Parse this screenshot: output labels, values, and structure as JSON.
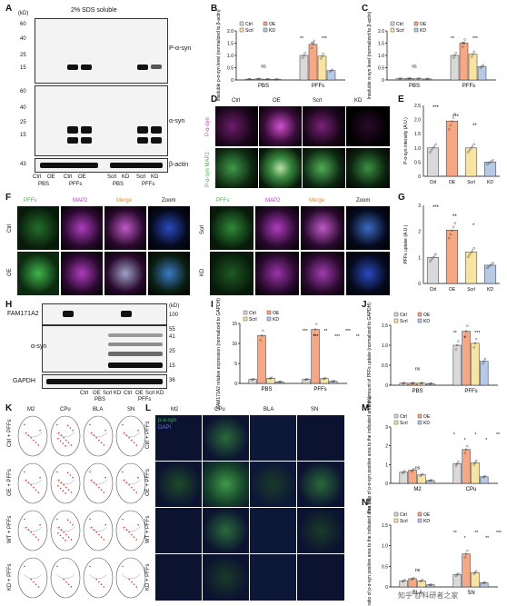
{
  "panels": [
    "A",
    "B",
    "C",
    "D",
    "E",
    "F",
    "G",
    "H",
    "I",
    "J",
    "K",
    "L",
    "M",
    "N"
  ],
  "A": {
    "title": "2% SDS soluble",
    "unit": "(kD)",
    "mw_top": [
      "60",
      "40",
      "25",
      "15"
    ],
    "mw_mid": [
      "60",
      "40",
      "25",
      "15"
    ],
    "mw_bot": [
      "43"
    ],
    "rows": [
      "P-α-syn",
      "α-syn",
      "β-actin"
    ],
    "lanes": [
      "Ctrl",
      "OE",
      "Ctrl",
      "OE",
      "Scrl",
      "KD",
      "Scrl",
      "KD"
    ],
    "groups": [
      "PBS",
      "PFFs",
      "PBS",
      "PFFs"
    ]
  },
  "B": {
    "ylabel": "Insoluble p-α-syn level (normalized to β-actin)",
    "ticks": [
      "0",
      "0.5",
      "1.0",
      "1.5",
      "2.0"
    ],
    "groups": [
      "PBS",
      "PFFs"
    ],
    "ns": "ns",
    "sig": [
      "**",
      "**",
      "***"
    ]
  },
  "C": {
    "ylabel": "Insoluble α-syn level (normalized to β-actin)",
    "ticks": [
      "0",
      "0.5",
      "1.0",
      "1.5",
      "2.0"
    ],
    "groups": [
      "PBS",
      "PFFs"
    ],
    "ns": "ns",
    "sig": [
      "**",
      "**",
      "***"
    ]
  },
  "legend": [
    "Ctrl",
    "OE",
    "Scrl",
    "KD"
  ],
  "D": {
    "rows": [
      "P-α-syn",
      "P-α-syn MAP2"
    ],
    "cols": [
      "Ctrl",
      "OE",
      "Scrl",
      "KD"
    ]
  },
  "E": {
    "ylabel": "P-α-syn intensity (A.U.)",
    "ticks": [
      "0",
      "0.5",
      "1.0",
      "1.5",
      "2.0",
      "2.5"
    ],
    "cats": [
      "Ctrl",
      "OE",
      "Scrl",
      "KD"
    ],
    "sig": [
      "***",
      "***",
      "**"
    ]
  },
  "F": {
    "cols": [
      "PFFs",
      "MAP2",
      "Merge",
      "Zoom"
    ],
    "rows_left": [
      "Ctrl",
      "OE"
    ],
    "rows_right": [
      "Scrl",
      "KD"
    ]
  },
  "G": {
    "ylabel": "PFFs uptake (A.U.)",
    "ticks": [
      "0",
      "1",
      "2",
      "3"
    ],
    "cats": [
      "Ctrl",
      "OE",
      "Scrl",
      "KD"
    ],
    "sig": [
      "***",
      "**",
      "*"
    ]
  },
  "H": {
    "rows": [
      "FAM171A2",
      "α-syn",
      "GAPDH"
    ],
    "mw": [
      "(kD)",
      "100",
      "55",
      "41",
      "25",
      "15",
      "36"
    ],
    "lanes": [
      "Ctrl",
      "OE",
      "Scrl",
      "KD",
      "Ctrl",
      "OE",
      "Scrl",
      "KD"
    ],
    "groups": [
      "PBS",
      "PFFs"
    ]
  },
  "I": {
    "ylabel": "FAM171A2 relative expression (normalized to GAPDH)",
    "ticks": [
      "0",
      "5",
      "10",
      "15"
    ],
    "groups": [
      "PBS",
      "PFFs"
    ],
    "sig": [
      "***",
      "***",
      "**",
      "***",
      "***",
      "**"
    ]
  },
  "J": {
    "ylabel": "The amount of PFFs uptake (normalized to GAPDH)",
    "ticks": [
      "0",
      "0.5",
      "1.0",
      "1.5"
    ],
    "groups": [
      "PBS",
      "PFFs"
    ],
    "ns": "ns",
    "sig": [
      "**",
      "*",
      "***"
    ]
  },
  "K": {
    "cols": [
      "M2",
      "CPu",
      "BLA",
      "SN"
    ],
    "rows": [
      "Ctrl + PFFs",
      "OE + PFFs",
      "WT + PFFs",
      "KD + PFFs"
    ]
  },
  "L": {
    "cols": [
      "M2",
      "CPu",
      "BLA",
      "SN"
    ],
    "rows": [
      "Ctrl + PFFs",
      "OE + PFFs",
      "WT + PFFs",
      "KD + PFFs"
    ],
    "stains": [
      "p-α-syn",
      "DAPI"
    ]
  },
  "M": {
    "ylabel": "The ratio of p-α-syn positive area to the indicated area (%)",
    "ticks": [
      "0",
      "1",
      "2",
      "3"
    ],
    "groups": [
      "M2",
      "CPu"
    ],
    "ns": "ns",
    "sig": [
      "*",
      "*",
      "*",
      "*",
      "**"
    ]
  },
  "N": {
    "ylabel": "The ratio of p-α-syn positive area to the indicated area (%)",
    "ticks": [
      "0",
      "0.5",
      "1.0",
      "1.5"
    ],
    "groups": [
      "BLA",
      "SN"
    ],
    "ns": "ns",
    "sig": [
      "**",
      "*",
      "**",
      "**",
      "***",
      "*"
    ]
  },
  "watermark": "知乎 @科研者之家",
  "colors": {
    "Ctrl": "#d9d9d9",
    "OE": "#f4a886",
    "Scrl": "#f7e3a2",
    "KD": "#b6c9e6",
    "map2": "#b03cc0",
    "green": "#3fb64a",
    "psyn": "#c03cb8"
  },
  "chart_data": [
    {
      "type": "bar",
      "panel": "B",
      "categories": [
        "PBS",
        "PFFs"
      ],
      "series": [
        {
          "name": "Ctrl",
          "values": [
            0.03,
            1.0
          ]
        },
        {
          "name": "OE",
          "values": [
            0.04,
            1.45
          ]
        },
        {
          "name": "Scrl",
          "values": [
            0.03,
            0.97
          ]
        },
        {
          "name": "KD",
          "values": [
            0.02,
            0.38
          ]
        }
      ],
      "ylim": [
        0,
        2
      ]
    },
    {
      "type": "bar",
      "panel": "C",
      "categories": [
        "PBS",
        "PFFs"
      ],
      "series": [
        {
          "name": "Ctrl",
          "values": [
            0.05,
            1.0
          ]
        },
        {
          "name": "OE",
          "values": [
            0.06,
            1.5
          ]
        },
        {
          "name": "Scrl",
          "values": [
            0.05,
            1.05
          ]
        },
        {
          "name": "KD",
          "values": [
            0.04,
            0.55
          ]
        }
      ],
      "ylim": [
        0,
        2
      ]
    },
    {
      "type": "bar",
      "panel": "E",
      "categories": [
        "Ctrl",
        "OE",
        "Scrl",
        "KD"
      ],
      "series": [
        {
          "values": [
            1.0,
            1.95,
            1.0,
            0.5
          ]
        }
      ],
      "ylim": [
        0,
        2.5
      ]
    },
    {
      "type": "bar",
      "panel": "G",
      "categories": [
        "Ctrl",
        "OE",
        "Scrl",
        "KD"
      ],
      "series": [
        {
          "values": [
            1.0,
            2.05,
            1.2,
            0.7
          ]
        }
      ],
      "ylim": [
        0,
        3
      ]
    },
    {
      "type": "bar",
      "panel": "I",
      "categories": [
        "PBS",
        "PFFs"
      ],
      "series": [
        {
          "name": "Ctrl",
          "values": [
            1.0,
            1.0
          ]
        },
        {
          "name": "OE",
          "values": [
            12.0,
            13.5
          ]
        },
        {
          "name": "Scrl",
          "values": [
            1.3,
            1.2
          ]
        },
        {
          "name": "KD",
          "values": [
            0.4,
            0.5
          ]
        }
      ],
      "ylim": [
        0,
        15
      ]
    },
    {
      "type": "bar",
      "panel": "J",
      "categories": [
        "PBS",
        "PFFs"
      ],
      "series": [
        {
          "name": "Ctrl",
          "values": [
            0.05,
            1.0
          ]
        },
        {
          "name": "OE",
          "values": [
            0.05,
            1.35
          ]
        },
        {
          "name": "Scrl",
          "values": [
            0.05,
            1.05
          ]
        },
        {
          "name": "KD",
          "values": [
            0.04,
            0.6
          ]
        }
      ],
      "ylim": [
        0,
        1.5
      ]
    },
    {
      "type": "bar",
      "panel": "M",
      "categories": [
        "M2",
        "CPu"
      ],
      "series": [
        {
          "name": "Ctrl",
          "values": [
            0.6,
            1.05
          ]
        },
        {
          "name": "OE",
          "values": [
            0.7,
            1.8
          ]
        },
        {
          "name": "Scrl",
          "values": [
            0.45,
            1.1
          ]
        },
        {
          "name": "KD",
          "values": [
            0.15,
            0.35
          ]
        }
      ],
      "ylim": [
        0,
        3
      ]
    },
    {
      "type": "bar",
      "panel": "N",
      "categories": [
        "BLA",
        "SN"
      ],
      "series": [
        {
          "name": "Ctrl",
          "values": [
            0.15,
            0.3
          ]
        },
        {
          "name": "OE",
          "values": [
            0.2,
            0.8
          ]
        },
        {
          "name": "Scrl",
          "values": [
            0.15,
            0.35
          ]
        },
        {
          "name": "KD",
          "values": [
            0.05,
            0.1
          ]
        }
      ],
      "ylim": [
        0,
        1.5
      ]
    }
  ]
}
